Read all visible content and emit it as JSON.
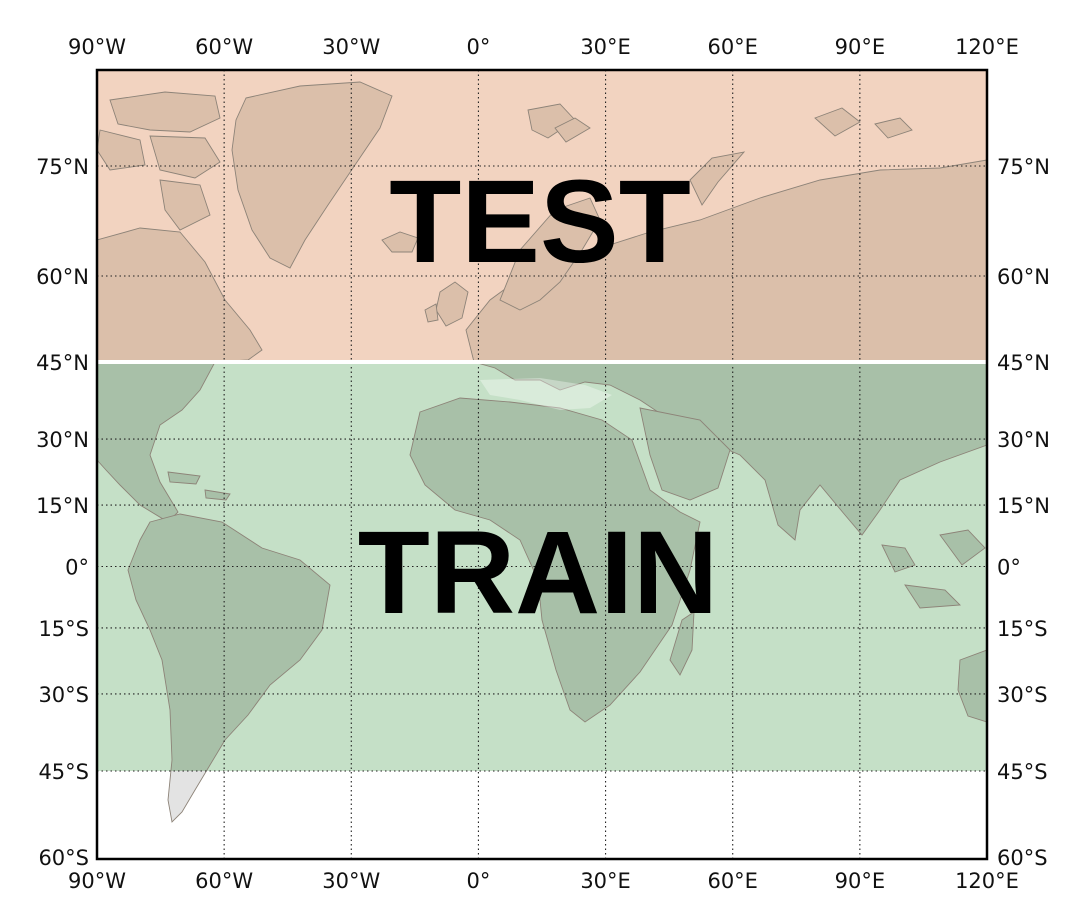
{
  "map": {
    "projection": "Mercator",
    "lon_range": [
      -90,
      120
    ],
    "lat_range": [
      -60,
      90
    ],
    "colors": {
      "test_region": "#f2d3c0",
      "train_region": "#c5e0c7",
      "land_test": "#dbbfaa",
      "land_train": "#a8c0a8",
      "land_outside": "#e3e3e3",
      "coast": "#8d8378",
      "background": "#ffffff",
      "frame": "#000000"
    },
    "regions": [
      {
        "label": "TEST",
        "lat_min": 45,
        "lat_max": 90
      },
      {
        "label": "TRAIN",
        "lat_min": -45,
        "lat_max": 45
      }
    ],
    "lon_ticks": [
      {
        "value": -90,
        "label": "90°W"
      },
      {
        "value": -60,
        "label": "60°W"
      },
      {
        "value": -30,
        "label": "30°W"
      },
      {
        "value": 0,
        "label": "0°"
      },
      {
        "value": 30,
        "label": "30°E"
      },
      {
        "value": 60,
        "label": "60°E"
      },
      {
        "value": 90,
        "label": "90°E"
      },
      {
        "value": 120,
        "label": "120°E"
      }
    ],
    "lat_ticks": [
      {
        "value": 75,
        "label": "75°N"
      },
      {
        "value": 60,
        "label": "60°N"
      },
      {
        "value": 45,
        "label": "45°N"
      },
      {
        "value": 30,
        "label": "30°N"
      },
      {
        "value": 15,
        "label": "15°N"
      },
      {
        "value": 0,
        "label": "0°"
      },
      {
        "value": -15,
        "label": "15°S"
      },
      {
        "value": -30,
        "label": "30°S"
      },
      {
        "value": -45,
        "label": "45°S"
      },
      {
        "value": -60,
        "label": "60°S"
      }
    ]
  }
}
